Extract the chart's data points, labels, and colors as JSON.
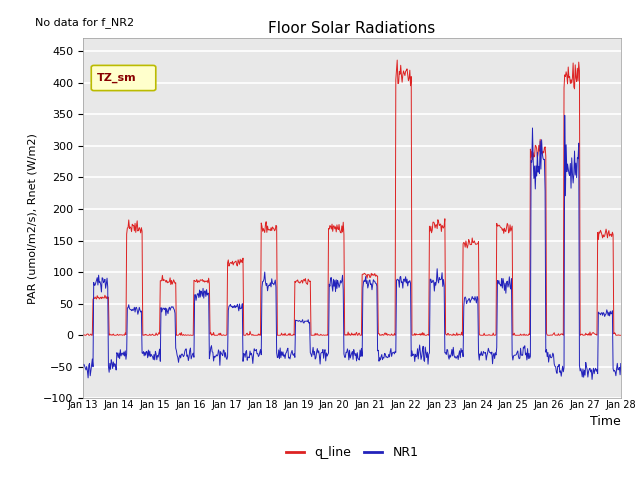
{
  "title": "Floor Solar Radiations",
  "xlabel": "Time",
  "ylabel": "PAR (umol/m2/s), Rnet (W/m2)",
  "no_data_label": "No data for f_NR2",
  "legend_label": "TZ_sm",
  "line1_label": "q_line",
  "line2_label": "NR1",
  "line1_color": "#DD2222",
  "line2_color": "#2222BB",
  "ylim": [
    -100,
    470
  ],
  "yticks": [
    -100,
    -50,
    0,
    50,
    100,
    150,
    200,
    250,
    300,
    350,
    400,
    450
  ],
  "xtick_labels": [
    "Jan 13",
    "Jan 14",
    "Jan 15",
    "Jan 16",
    "Jan 17",
    "Jan 18",
    "Jan 19",
    "Jan 20",
    "Jan 21",
    "Jan 22",
    "Jan 23",
    "Jan 24",
    "Jan 25",
    "Jan 26",
    "Jan 27",
    "Jan 28"
  ],
  "background_color": "#E8E8E8",
  "grid_color": "white",
  "legend_box_facecolor": "#FFFFCC",
  "legend_box_edgecolor": "#BBBB00",
  "n_days": 16,
  "pts_per_day": 48,
  "q_amps": [
    60,
    170,
    85,
    85,
    115,
    170,
    85,
    170,
    95,
    405,
    175,
    145,
    170,
    290,
    410,
    160
  ],
  "nr1_amps": [
    85,
    40,
    40,
    65,
    45,
    82,
    22,
    82,
    82,
    85,
    85,
    55,
    80,
    270,
    265,
    35
  ],
  "nr1_night_base": [
    -50,
    -30,
    -30,
    -30,
    -30,
    -30,
    -30,
    -30,
    -30,
    -30,
    -30,
    -30,
    -30,
    -30,
    -55,
    -55
  ]
}
